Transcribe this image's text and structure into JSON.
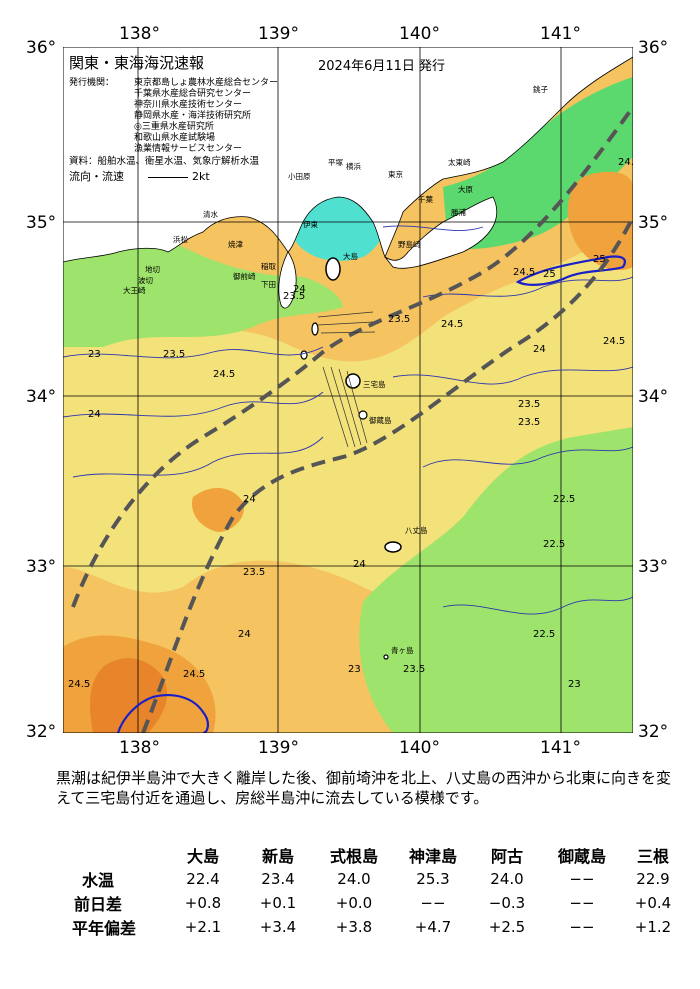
{
  "map": {
    "title": "関東・東海海況速報",
    "issue_date": "2024年6月11日 発行",
    "agencies_label": "発行機関：",
    "agencies": [
      "東京都島しょ農林水産総合センター",
      "千葉県水産総合研究センター",
      "神奈川県水産技術センター",
      "静岡県水産・海洋技術研究所",
      "◎三重県水産研究所",
      "和歌山県水産試験場",
      "漁業情報サービスセンター"
    ],
    "sources": "資料：船舶水温、衛星水温、気象庁解析水温",
    "flow_label": "流向・流速",
    "flow_scale": "2kt",
    "lon_labels": [
      "138°",
      "139°",
      "140°",
      "141°"
    ],
    "lat_labels": [
      "36°",
      "35°",
      "34°",
      "33°",
      "32°"
    ],
    "place_names": [
      "大島",
      "三宅島",
      "御蔵島",
      "八丈島",
      "青ヶ島",
      "野島崎",
      "千葉",
      "銚子",
      "大原",
      "太東崎",
      "勝浦",
      "横浜",
      "平塚",
      "東京",
      "小田原",
      "伊東",
      "稲取",
      "下田",
      "御前崎",
      "焼津",
      "清水",
      "波切",
      "大王崎",
      "地切",
      "浜松"
    ],
    "contour_labels": [
      "22.5",
      "23",
      "23.5",
      "24",
      "24.5",
      "25"
    ],
    "colors": {
      "sea_green": "#5cd96e",
      "sea_lightgreen": "#9ee36b",
      "sea_yellow": "#f3e17a",
      "sea_lightorange": "#f5c360",
      "sea_orange": "#f0a23c",
      "sea_darkorange": "#e8842a",
      "sea_cyan": "#4fe0d0",
      "sea_blue": "#3aa5ff",
      "land": "#ffffff",
      "kuroshio_axis": "#555555",
      "contour_25": "#1a20c8"
    }
  },
  "summary": "黒潮は紀伊半島沖で大きく離岸した後、御前埼沖を北上、八丈島の西沖から北東に向きを変えて三宅島付近を通過し、房総半島沖に流去している模様です。",
  "stats": {
    "columns": [
      "大島",
      "新島",
      "式根島",
      "神津島",
      "阿古",
      "御蔵島",
      "三根"
    ],
    "rows": [
      {
        "label": "水温",
        "values": [
          "22.4",
          "23.4",
          "24.0",
          "25.3",
          "24.0",
          "−−",
          "22.9"
        ]
      },
      {
        "label": "前日差",
        "values": [
          "+0.8",
          "+0.1",
          "+0.0",
          "−−",
          "−0.3",
          "−−",
          "+0.4"
        ]
      },
      {
        "label": "平年偏差",
        "values": [
          "+2.1",
          "+3.4",
          "+3.8",
          "+4.7",
          "+2.5",
          "−−",
          "+1.2"
        ]
      }
    ]
  }
}
